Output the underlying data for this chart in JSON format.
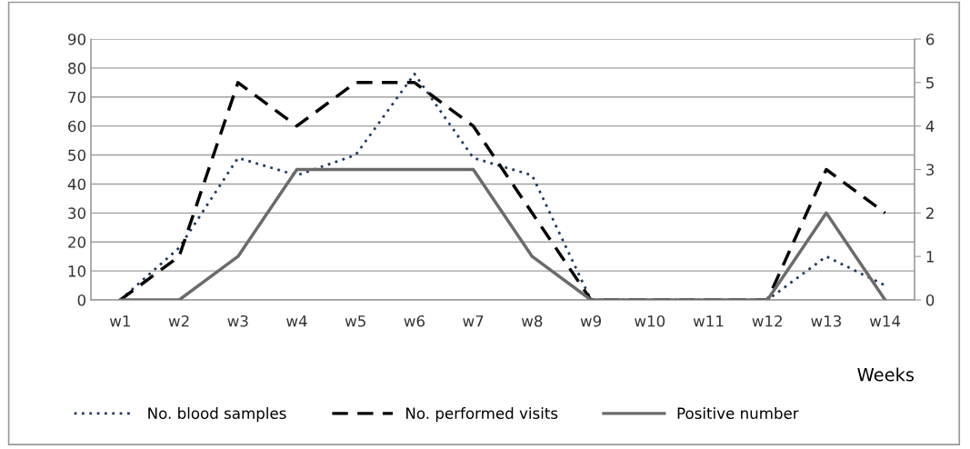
{
  "chart_data": {
    "type": "line",
    "xlabel": "Weeks",
    "categories": [
      "w1",
      "w2",
      "w3",
      "w4",
      "w5",
      "w6",
      "w7",
      "w8",
      "w9",
      "w10",
      "w11",
      "w12",
      "w13",
      "w14"
    ],
    "series": [
      {
        "name": "No. blood samples",
        "color": "#1f3a5f",
        "line_style": "dotted",
        "values": [
          0,
          18,
          49,
          43,
          50,
          78,
          49,
          43,
          0,
          0,
          0,
          0,
          15,
          5
        ]
      },
      {
        "name": "No. performed visits",
        "color": "#000000",
        "line_style": "dashed",
        "axis": "y2",
        "values": [
          0,
          1,
          5,
          4,
          5,
          5,
          4,
          2,
          0,
          0,
          0,
          0,
          3,
          2
        ]
      },
      {
        "name": "Positive number",
        "color": "#6b6b6b",
        "line_style": "solid",
        "axis": "y2",
        "values": [
          0,
          0,
          1,
          3,
          3,
          3,
          3,
          1,
          0,
          0,
          0,
          0,
          2,
          0
        ]
      }
    ],
    "ylim": [
      0,
      90
    ],
    "yticks": [
      0,
      10,
      20,
      30,
      40,
      50,
      60,
      70,
      80,
      90
    ],
    "y2lim": [
      0,
      6
    ],
    "y2ticks": [
      0,
      1,
      2,
      3,
      4,
      5,
      6
    ],
    "grid": "y",
    "legend": "bottom",
    "marker": "none"
  }
}
